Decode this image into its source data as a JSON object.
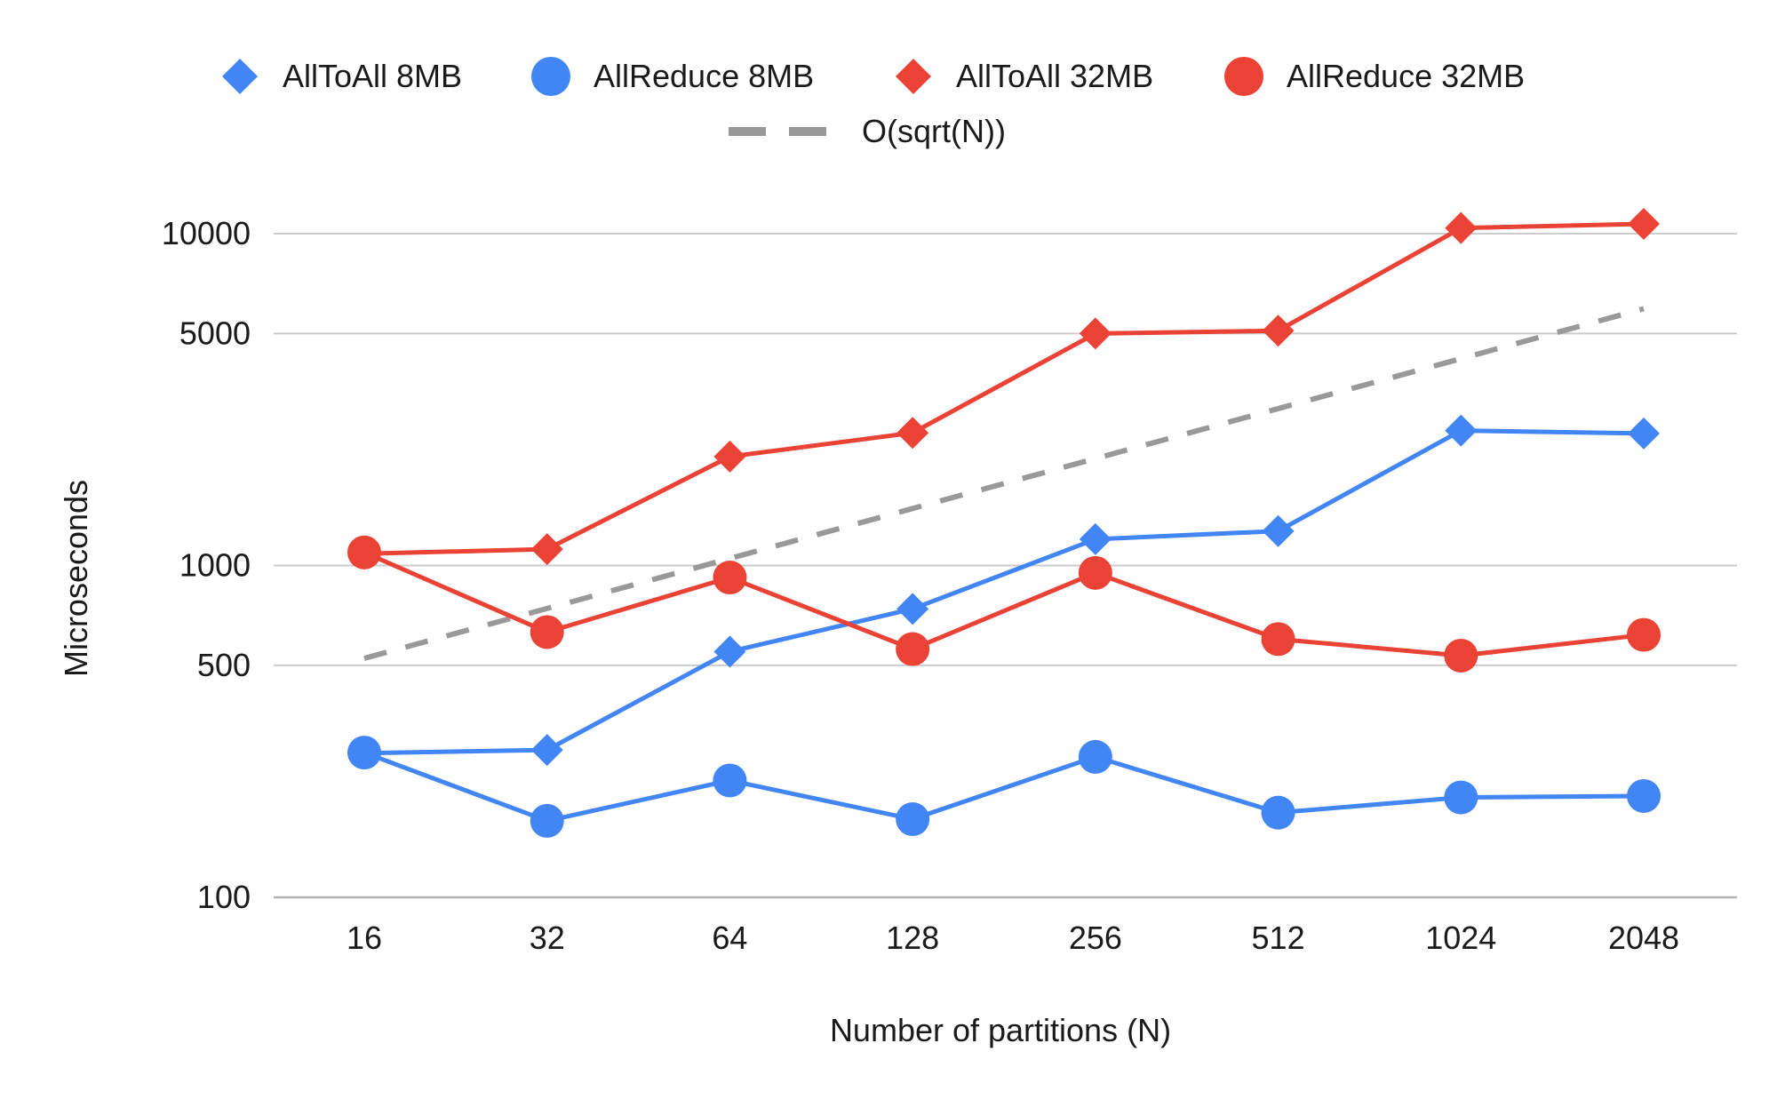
{
  "chart_data": {
    "type": "line",
    "x_scale": "log2",
    "y_scale": "log10",
    "categories": [
      "16",
      "32",
      "64",
      "128",
      "256",
      "512",
      "1024",
      "2048"
    ],
    "x": [
      16,
      32,
      64,
      128,
      256,
      512,
      1024,
      2048
    ],
    "xlabel": "Number of partitions (N)",
    "ylabel": "Microseconds",
    "ylim": [
      100,
      14000
    ],
    "yticks": [
      100,
      500,
      1000,
      5000,
      10000
    ],
    "ytick_labels": [
      "100",
      "500",
      "1000",
      "5000",
      "10000"
    ],
    "grid": true,
    "legend_position": "top",
    "series": [
      {
        "name": "AllToAll 8MB",
        "marker": "diamond",
        "color": "#4285f4",
        "line_style": "solid",
        "values": [
          272,
          278,
          550,
          740,
          1200,
          1270,
          2550,
          2500
        ]
      },
      {
        "name": "AllReduce 8MB",
        "marker": "circle",
        "color": "#4285f4",
        "line_style": "solid",
        "values": [
          273,
          170,
          225,
          172,
          265,
          180,
          200,
          202
        ]
      },
      {
        "name": "AllToAll 32MB",
        "marker": "diamond",
        "color": "#ea4335",
        "line_style": "solid",
        "values": [
          1085,
          1120,
          2130,
          2510,
          5000,
          5100,
          10400,
          10700
        ]
      },
      {
        "name": "AllReduce 32MB",
        "marker": "circle",
        "color": "#ea4335",
        "line_style": "solid",
        "values": [
          1095,
          630,
          920,
          560,
          950,
          600,
          535,
          618
        ]
      },
      {
        "name": "O(sqrt(N))",
        "marker": "none",
        "color": "#999999",
        "line_style": "dashed",
        "values": [
          525,
          742,
          1050,
          1485,
          2100,
          2970,
          4200,
          5940
        ]
      }
    ]
  }
}
